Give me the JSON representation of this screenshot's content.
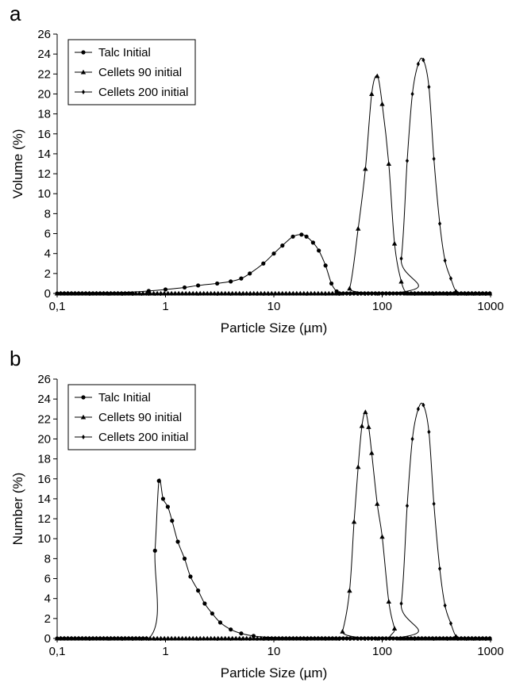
{
  "chart_data": [
    {
      "panel_label": "a",
      "type": "line",
      "xlabel": "Particle Size (µm)",
      "ylabel": "Volume (%)",
      "xscale": "log",
      "xlim": [
        0.1,
        1000
      ],
      "ylim": [
        0,
        26
      ],
      "xticks": [
        "0,1",
        "1",
        "10",
        "100",
        "1000"
      ],
      "yticks": [
        "0",
        "2",
        "4",
        "6",
        "8",
        "10",
        "12",
        "14",
        "16",
        "18",
        "20",
        "22",
        "24",
        "26"
      ],
      "grid": false,
      "legend_position": "top-left",
      "series": [
        {
          "name": "Talc Initial",
          "marker": "circle",
          "x": [
            0.1,
            0.3,
            0.5,
            0.7,
            1.0,
            1.5,
            2.0,
            3.0,
            4.0,
            5.0,
            6.0,
            8.0,
            10.0,
            12.0,
            15.0,
            18.0,
            20.0,
            23.0,
            26.0,
            30.0,
            34.0,
            38.0,
            42.0,
            100.0,
            1000.0
          ],
          "y": [
            0,
            0.05,
            0.15,
            0.25,
            0.4,
            0.6,
            0.8,
            1.0,
            1.2,
            1.5,
            2.0,
            3.0,
            4.0,
            4.8,
            5.7,
            5.9,
            5.7,
            5.1,
            4.3,
            2.8,
            1.0,
            0.2,
            0,
            0,
            0
          ]
        },
        {
          "name": "Cellets 90 initial",
          "marker": "triangle",
          "x": [
            0.1,
            40,
            50,
            60,
            70,
            80,
            90,
            100,
            115,
            130,
            150,
            170,
            200,
            1000
          ],
          "y": [
            0,
            0,
            0.5,
            6.5,
            12.5,
            20.0,
            21.8,
            19.0,
            13.0,
            5.0,
            1.2,
            0,
            0,
            0
          ],
          "x_markers": [
            40,
            50,
            60,
            70,
            80,
            90,
            100,
            115,
            130,
            150,
            170
          ]
        },
        {
          "name": "Cellets 200 initial",
          "marker": "diamond",
          "x": [
            0.1,
            120,
            150,
            170,
            190,
            215,
            240,
            270,
            300,
            340,
            380,
            430,
            480,
            550,
            1000
          ],
          "y": [
            0,
            0,
            3.5,
            13.3,
            20.0,
            23.0,
            23.4,
            20.7,
            13.5,
            7.0,
            3.3,
            1.5,
            0.2,
            0,
            0
          ],
          "x_markers": [
            120,
            150,
            170,
            190,
            215,
            240,
            270,
            300,
            340,
            380,
            430,
            480,
            550
          ]
        }
      ]
    },
    {
      "panel_label": "b",
      "type": "line",
      "xlabel": "Particle Size (µm)",
      "ylabel": "Number (%)",
      "xscale": "log",
      "xlim": [
        0.1,
        1000
      ],
      "ylim": [
        0,
        26
      ],
      "xticks": [
        "0,1",
        "1",
        "10",
        "100",
        "1000"
      ],
      "yticks": [
        "0",
        "2",
        "4",
        "6",
        "8",
        "10",
        "12",
        "14",
        "16",
        "18",
        "20",
        "22",
        "24",
        "26"
      ],
      "grid": false,
      "legend_position": "top-left",
      "series": [
        {
          "name": "Talc Initial",
          "marker": "circle",
          "x": [
            0.1,
            0.7,
            0.8,
            0.87,
            0.95,
            1.05,
            1.15,
            1.3,
            1.5,
            1.7,
            2.0,
            2.3,
            2.7,
            3.2,
            4.0,
            5.0,
            6.5,
            8.0,
            10.0,
            14.0,
            20.0,
            40.0,
            100.0,
            1000.0
          ],
          "y": [
            0,
            0,
            8.8,
            15.8,
            14.0,
            13.2,
            11.8,
            9.7,
            8.0,
            6.2,
            4.8,
            3.5,
            2.5,
            1.6,
            0.9,
            0.5,
            0.25,
            0.15,
            0.1,
            0.05,
            0,
            0,
            0,
            0
          ]
        },
        {
          "name": "Cellets 90 initial",
          "marker": "triangle",
          "x": [
            0.1,
            38,
            43,
            50,
            55,
            60,
            65,
            70,
            75,
            80,
            90,
            100,
            115,
            130,
            140,
            1000
          ],
          "y": [
            0,
            0,
            0.7,
            4.8,
            11.7,
            17.2,
            21.3,
            22.7,
            21.2,
            18.6,
            13.5,
            10.2,
            3.7,
            1.0,
            0,
            0
          ],
          "x_markers": [
            38,
            43,
            50,
            55,
            60,
            65,
            70,
            75,
            80,
            90,
            100,
            115,
            130,
            140
          ]
        },
        {
          "name": "Cellets 200 initial",
          "marker": "diamond",
          "x": [
            0.1,
            120,
            150,
            170,
            190,
            215,
            240,
            270,
            300,
            340,
            380,
            430,
            480,
            550,
            1000
          ],
          "y": [
            0,
            0,
            3.5,
            13.3,
            20.0,
            23.0,
            23.4,
            20.7,
            13.5,
            7.0,
            3.3,
            1.5,
            0.2,
            0,
            0
          ],
          "x_markers": [
            120,
            150,
            170,
            190,
            215,
            240,
            270,
            300,
            340,
            380,
            430,
            480,
            550
          ]
        }
      ]
    }
  ]
}
